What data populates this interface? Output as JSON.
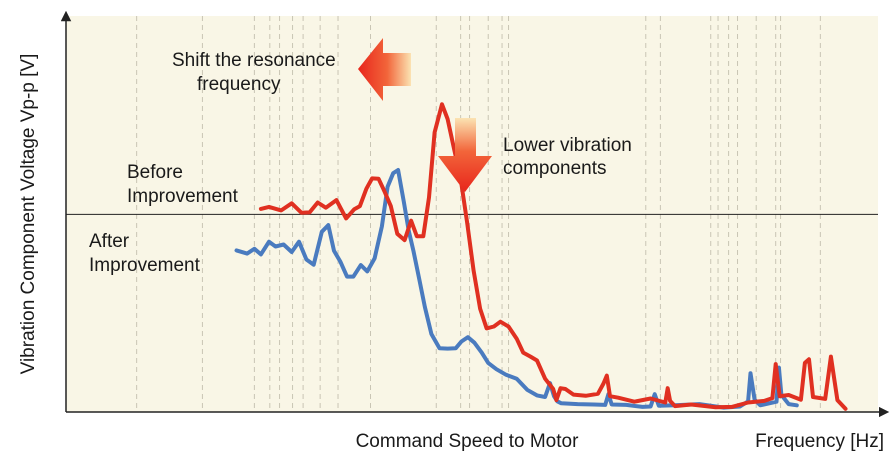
{
  "chart_data": {
    "type": "line",
    "xlabel": "Command Speed to Motor",
    "x_unit_label": "Frequency [Hz]",
    "ylabel": "Vibration Component Voltage Vp-p [V]",
    "xlim": [
      0,
      100
    ],
    "ylim": [
      0,
      100
    ],
    "background_color": "#f9f6e6",
    "grid": "dashed vertical",
    "grid_x": [
      8.7,
      16.8,
      23.2,
      25.1,
      26.3,
      27.9,
      29.2,
      31.3,
      33.5,
      37.5,
      45.6,
      48.6,
      49.7,
      52.0,
      53.7,
      54.5,
      71.4,
      73.2,
      79.4,
      80.3,
      81.6,
      82.7,
      85.0,
      87.4,
      88.0,
      92.9
    ],
    "threshold": {
      "y": 49.9
    },
    "series": [
      {
        "name": "Before Improvement",
        "color": "#e03021",
        "x": [
          24.0,
          25.0,
          26.5,
          27.8,
          29.0,
          30.0,
          31.0,
          32.0,
          33.3,
          34.5,
          35.5,
          36.2,
          37.0,
          37.7,
          38.5,
          39.2,
          40.0,
          40.8,
          41.7,
          42.5,
          43.2,
          44.0,
          44.7,
          45.4,
          46.3,
          47.0,
          47.8,
          48.6,
          49.4,
          50.2,
          51.0,
          51.8,
          52.7,
          53.5,
          54.5,
          55.5,
          56.3,
          57.2,
          58.0,
          59.0,
          60.0,
          60.4,
          60.9,
          61.5,
          62.5,
          64.0,
          65.5,
          66.2,
          66.6,
          67.0,
          68.0,
          70.0,
          72.0,
          73.8,
          74.1,
          74.4,
          75.0,
          77.0,
          80.0,
          82.0,
          84.0,
          86.0,
          87.0,
          87.4,
          87.9,
          89.0,
          90.5,
          91.0,
          91.5,
          92.0,
          93.5,
          94.2,
          95.0,
          96.0
        ],
        "y": [
          51.3,
          51.8,
          50.9,
          52.7,
          50.3,
          50.4,
          52.9,
          51.6,
          53.5,
          48.9,
          51.2,
          52.0,
          56.4,
          59.0,
          58.9,
          55.8,
          52.0,
          45.0,
          43.4,
          48.3,
          44.4,
          44.4,
          54.2,
          70.6,
          77.7,
          74.0,
          66.4,
          59.0,
          47.9,
          35.7,
          26.1,
          21.1,
          21.6,
          22.8,
          21.6,
          18.5,
          15.0,
          14.0,
          13.0,
          8.4,
          5.8,
          3.0,
          6.0,
          5.8,
          4.4,
          4.1,
          4.6,
          7.2,
          9.2,
          4.0,
          3.6,
          2.6,
          3.4,
          2.4,
          6.0,
          2.8,
          1.5,
          1.9,
          1.2,
          1.3,
          2.4,
          2.8,
          3.5,
          12.1,
          4.0,
          4.3,
          3.1,
          12.4,
          13.3,
          3.8,
          3.3,
          14.0,
          3.0,
          0.8
        ]
      },
      {
        "name": "After Improvement",
        "color": "#4a7bbf",
        "x": [
          21.0,
          22.3,
          23.2,
          24.0,
          25.0,
          25.8,
          26.8,
          27.8,
          28.7,
          29.6,
          30.5,
          31.5,
          32.3,
          33.0,
          33.8,
          34.6,
          35.4,
          36.3,
          37.1,
          38.0,
          38.9,
          39.6,
          40.3,
          40.9,
          41.6,
          42.2,
          42.8,
          43.5,
          44.2,
          45.0,
          46.0,
          47.0,
          48.0,
          48.7,
          49.5,
          50.3,
          51.2,
          52.0,
          53.0,
          54.2,
          55.5,
          56.8,
          58.0,
          59.0,
          59.6,
          60.1,
          60.5,
          61.0,
          63.0,
          65.0,
          66.4,
          66.8,
          67.2,
          69.0,
          71.0,
          72.0,
          72.5,
          73.0,
          75.0,
          78.0,
          81.0,
          83.0,
          84.0,
          84.3,
          84.8,
          85.5,
          87.5,
          87.8,
          88.1,
          89.0,
          90.0
        ],
        "y": [
          40.8,
          40.0,
          41.2,
          39.8,
          43.0,
          41.8,
          42.3,
          40.4,
          43.0,
          38.5,
          37.2,
          45.5,
          47.2,
          40.7,
          37.9,
          34.2,
          34.2,
          37.1,
          35.5,
          38.8,
          46.9,
          56.9,
          60.3,
          61.1,
          53.1,
          45.8,
          40.6,
          33.6,
          26.5,
          19.7,
          16.1,
          16.0,
          16.1,
          17.8,
          18.9,
          17.5,
          15.0,
          12.4,
          10.8,
          9.4,
          8.4,
          5.6,
          4.2,
          3.8,
          7.3,
          4.0,
          2.7,
          2.2,
          2.0,
          1.9,
          1.8,
          4.5,
          1.9,
          1.8,
          1.3,
          1.4,
          4.5,
          1.6,
          1.7,
          2.0,
          1.1,
          1.4,
          2.7,
          9.8,
          3.1,
          1.7,
          2.6,
          11.2,
          4.3,
          2.0,
          1.7
        ]
      }
    ],
    "annotations": [
      {
        "id": "shift",
        "lines": [
          "Shift the resonance",
          "frequency"
        ]
      },
      {
        "id": "lower",
        "lines": [
          "Lower vibration",
          "components"
        ]
      },
      {
        "id": "before",
        "lines": [
          "Before",
          "Improvement"
        ]
      },
      {
        "id": "after",
        "lines": [
          "After",
          "Improvement"
        ]
      }
    ]
  }
}
